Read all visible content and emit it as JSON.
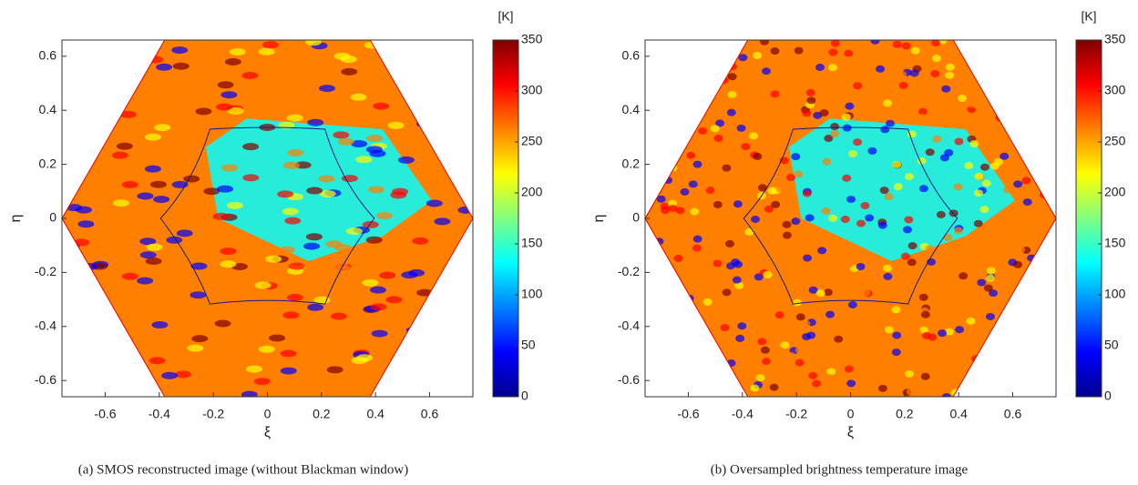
{
  "chart_data": [
    {
      "type": "heatmap",
      "xlabel": "ξ",
      "ylabel": "η",
      "xlim": [
        -0.76,
        0.76
      ],
      "ylim": [
        -0.66,
        0.66
      ],
      "xticks": [
        -0.6,
        -0.4,
        -0.2,
        0,
        0.2,
        0.4,
        0.6
      ],
      "yticks": [
        -0.6,
        -0.4,
        -0.2,
        0,
        0.2,
        0.4,
        0.6
      ],
      "colormap": "jet",
      "colorbar": {
        "label": "[K]",
        "lim": [
          0,
          350
        ],
        "ticks": [
          0,
          50,
          100,
          150,
          200,
          250,
          300,
          350
        ]
      },
      "caption": "(a) SMOS reconstructed image (without Blackman window)"
    },
    {
      "type": "heatmap",
      "xlabel": "ξ",
      "ylabel": "η",
      "xlim": [
        -0.76,
        0.76
      ],
      "ylim": [
        -0.66,
        0.66
      ],
      "xticks": [
        -0.6,
        -0.4,
        -0.2,
        0,
        0.2,
        0.4,
        0.6
      ],
      "yticks": [
        -0.6,
        -0.4,
        -0.2,
        0,
        0.2,
        0.4,
        0.6
      ],
      "colormap": "jet",
      "colorbar": {
        "label": "[K]",
        "lim": [
          0,
          350
        ],
        "ticks": [
          0,
          50,
          100,
          150,
          200,
          250,
          300,
          350
        ]
      },
      "caption": "(b) Oversampled brightness temperature image"
    }
  ]
}
